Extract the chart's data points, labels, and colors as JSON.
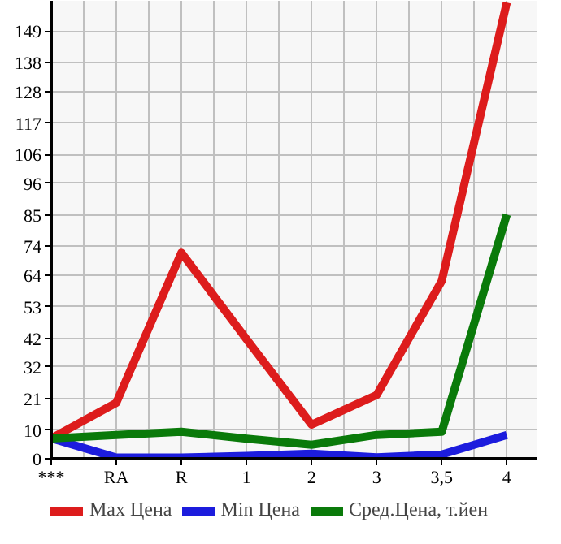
{
  "chart_data": {
    "type": "line",
    "categories": [
      "***",
      "RA",
      "R",
      "1",
      "2",
      "3",
      "3,5",
      "4"
    ],
    "series": [
      {
        "name": "Max Цена",
        "color": "#dd1c1c",
        "values": [
          7.1,
          19.5,
          71.8,
          41.7,
          11.9,
          22.2,
          62,
          159
        ]
      },
      {
        "name": "Min Цена",
        "color": "#1c1cdd",
        "values": [
          7.1,
          0.4,
          0.4,
          1,
          1.8,
          0.5,
          1.5,
          8.3
        ]
      },
      {
        "name": "Сред.Цена, т.йен",
        "color": "#0a7a0a",
        "values": [
          7.1,
          8.3,
          9.4,
          7,
          4.9,
          8.3,
          9.4,
          85.1
        ]
      }
    ],
    "ylim": [
      0,
      159.6
    ],
    "yticks": [
      0,
      10,
      21,
      32,
      42,
      53,
      64,
      74,
      85,
      96,
      106,
      117,
      128,
      138,
      149
    ],
    "grid": true,
    "legend": "bottom",
    "marker": "none",
    "line_style": "solid"
  }
}
